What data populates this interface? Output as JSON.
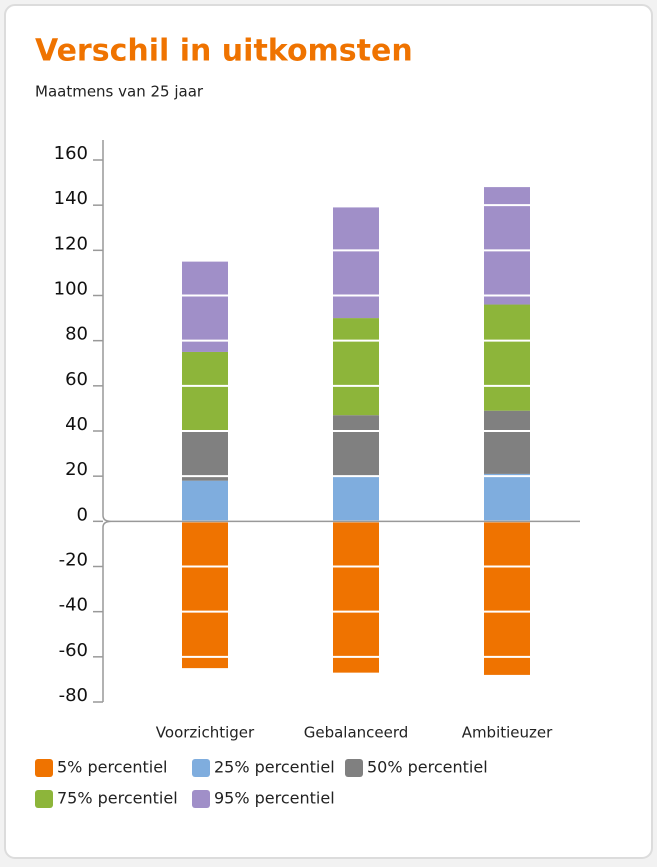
{
  "chart_data": {
    "type": "bar",
    "stacked": true,
    "title": "Verschil in uitkomsten",
    "subtitle": "Maatmens van 25 jaar",
    "categories": [
      "Voorzichtiger",
      "Gebalanceerd",
      "Ambitieuzer"
    ],
    "series": [
      {
        "name": "5% percentiel",
        "color": "#ef7300",
        "values": [
          -65,
          -67,
          -68
        ]
      },
      {
        "name": "25% percentiel",
        "color": "#7fadde",
        "values": [
          18,
          20,
          21
        ]
      },
      {
        "name": "50% percentiel",
        "color": "#808080",
        "values": [
          22,
          27,
          28
        ]
      },
      {
        "name": "75% percentiel",
        "color": "#8db53a",
        "values": [
          35,
          43,
          47
        ]
      },
      {
        "name": "95% percentiel",
        "color": "#a08fc8",
        "values": [
          40,
          49,
          52
        ]
      }
    ],
    "ylim": [
      -80,
      160
    ],
    "yticks": [
      -80,
      -60,
      -40,
      -20,
      0,
      20,
      40,
      60,
      80,
      100,
      120,
      140,
      160
    ],
    "grid": true
  }
}
